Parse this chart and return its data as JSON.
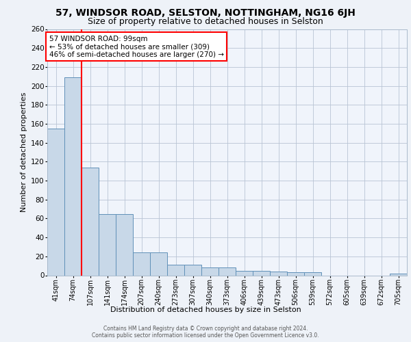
{
  "title_line1": "57, WINDSOR ROAD, SELSTON, NOTTINGHAM, NG16 6JH",
  "title_line2": "Size of property relative to detached houses in Selston",
  "xlabel": "Distribution of detached houses by size in Selston",
  "ylabel": "Number of detached properties",
  "bin_labels": [
    "41sqm",
    "74sqm",
    "107sqm",
    "141sqm",
    "174sqm",
    "207sqm",
    "240sqm",
    "273sqm",
    "307sqm",
    "340sqm",
    "373sqm",
    "406sqm",
    "439sqm",
    "473sqm",
    "506sqm",
    "539sqm",
    "572sqm",
    "605sqm",
    "639sqm",
    "672sqm",
    "705sqm"
  ],
  "bin_values": [
    155,
    209,
    114,
    65,
    65,
    24,
    24,
    11,
    11,
    8,
    8,
    5,
    5,
    4,
    3,
    3,
    0,
    0,
    0,
    0,
    2
  ],
  "bar_color": "#c8d8e8",
  "bar_edge_color": "#6090b8",
  "red_line_x": 2,
  "annotation_text": "57 WINDSOR ROAD: 99sqm\n← 53% of detached houses are smaller (309)\n46% of semi-detached houses are larger (270) →",
  "annotation_box_color": "white",
  "annotation_box_edge": "red",
  "footer_line1": "Contains HM Land Registry data © Crown copyright and database right 2024.",
  "footer_line2": "Contains public sector information licensed under the Open Government Licence v3.0.",
  "bg_color": "#eef2f8",
  "plot_bg_color": "#f0f4fb",
  "ylim": [
    0,
    260
  ],
  "yticks": [
    0,
    20,
    40,
    60,
    80,
    100,
    120,
    140,
    160,
    180,
    200,
    220,
    240,
    260
  ],
  "title1_fontsize": 10,
  "title2_fontsize": 9,
  "ylabel_fontsize": 8,
  "xlabel_fontsize": 8,
  "tick_fontsize": 7,
  "footer_fontsize": 5.5,
  "ann_fontsize": 7.5
}
